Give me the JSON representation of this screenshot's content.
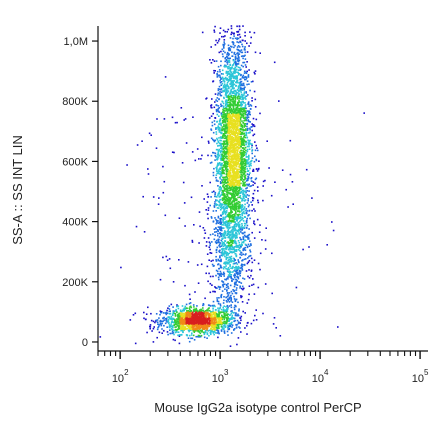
{
  "chart_data": {
    "type": "scatter",
    "style": "density dot plot (flow cytometry)",
    "xlabel": "Mouse IgG2a isotype control PerCP",
    "ylabel": "SS-A :: SS INT LIN",
    "x_scale": "log",
    "xlim": [
      60,
      120000
    ],
    "ylim": [
      -30000,
      1050000
    ],
    "x_ticks": [
      {
        "value": 100,
        "base": "10",
        "exp": "2"
      },
      {
        "value": 1000,
        "base": "10",
        "exp": "3"
      },
      {
        "value": 10000,
        "base": "10",
        "exp": "4"
      },
      {
        "value": 100000,
        "base": "10",
        "exp": "5"
      }
    ],
    "y_ticks": [
      {
        "value": 0,
        "label": "0"
      },
      {
        "value": 200000,
        "label": "200K"
      },
      {
        "value": 400000,
        "label": "400K"
      },
      {
        "value": 600000,
        "label": "600K"
      },
      {
        "value": 800000,
        "label": "800K"
      },
      {
        "value": 1000000,
        "label": "1,0M"
      }
    ],
    "populations": [
      {
        "name": "low-scatter cluster",
        "x_center": 600,
        "y_center": 70000,
        "x_spread_decades": 0.18,
        "y_spread": 22000,
        "count": 1500
      },
      {
        "name": "high-scatter population",
        "x_center": 1350,
        "y_center": 650000,
        "x_spread_decades": 0.09,
        "y_spread": 180000,
        "count": 3200
      },
      {
        "name": "connecting band",
        "x_center": 1250,
        "y_center": 300000,
        "x_spread_decades": 0.1,
        "y_spread": 110000,
        "count": 700
      },
      {
        "name": "scattered events",
        "x_center": 900,
        "y_center": 400000,
        "x_spread_decades": 0.45,
        "y_spread": 300000,
        "count": 220
      }
    ],
    "density_colors": [
      "#1a0fc9",
      "#1f6fe0",
      "#2cc6d8",
      "#33cc33",
      "#e8e020",
      "#f08a18",
      "#d81f1f"
    ],
    "grid": false
  }
}
